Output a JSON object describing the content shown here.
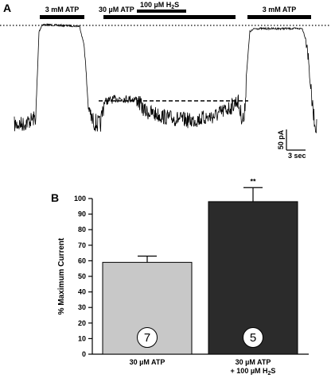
{
  "panel_a": {
    "label": "A",
    "bars": [
      {
        "label": "3 mM ATP"
      },
      {
        "label": "30 µM ATP"
      },
      {
        "label": "100 µM H",
        "sub": "2",
        "tail": "S"
      },
      {
        "label": "3 mM ATP"
      }
    ],
    "scale": {
      "current": "50 pA",
      "time": "3 sec"
    }
  },
  "panel_b": {
    "label": "B"
  },
  "chart_data": {
    "type": "bar",
    "categories": [
      "30 µM ATP",
      "30 µM ATP + 100 µM H2S"
    ],
    "category_lines": [
      [
        {
          "t": "30 µM ATP"
        }
      ],
      [
        {
          "t": "30 µM ATP"
        },
        {
          "t": "+ 100 µM H",
          "sub": "2",
          "tail": "S"
        }
      ]
    ],
    "values": [
      59,
      98
    ],
    "errors": [
      4,
      9
    ],
    "n_labels": [
      "7",
      "5"
    ],
    "significance": [
      "",
      "**"
    ],
    "bar_colors": [
      "#c8c8c8",
      "#2b2b2b"
    ],
    "ylabel": "% Maximum Current",
    "ylim": [
      0,
      100
    ],
    "yticks": [
      "0",
      "10",
      "20",
      "30",
      "40",
      "50",
      "60",
      "70",
      "80",
      "90",
      "100"
    ],
    "grid": false,
    "legend": "none"
  }
}
